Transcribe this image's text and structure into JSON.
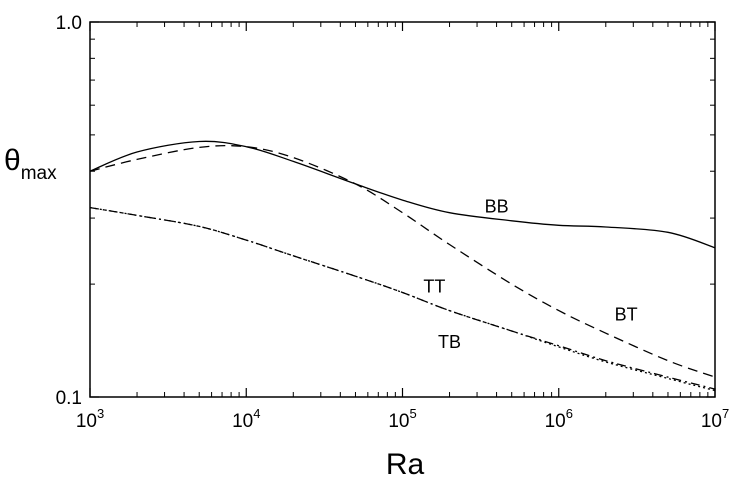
{
  "chart_data": {
    "type": "line",
    "xlabel": "Ra",
    "ylabel": "θ",
    "ylabel_subscript": "max",
    "xscale": "log",
    "yscale": "log",
    "xlim": [
      1000,
      10000000
    ],
    "ylim": [
      0.1,
      1.0
    ],
    "x_ticks": [
      {
        "value": 1000,
        "base": "10",
        "exp": "3"
      },
      {
        "value": 10000,
        "base": "10",
        "exp": "4"
      },
      {
        "value": 100000,
        "base": "10",
        "exp": "5"
      },
      {
        "value": 1000000,
        "base": "10",
        "exp": "6"
      },
      {
        "value": 10000000,
        "base": "10",
        "exp": "7"
      }
    ],
    "y_ticks": [
      {
        "value": 0.1,
        "label": "0.1"
      },
      {
        "value": 1.0,
        "label": "1.0"
      }
    ],
    "series": [
      {
        "name": "BB",
        "dash": "solid",
        "x": [
          1000,
          2000,
          5000,
          10000,
          20000,
          50000,
          100000,
          200000,
          500000,
          1000000,
          2000000,
          5000000,
          10000000
        ],
        "y": [
          0.4,
          0.45,
          0.48,
          0.465,
          0.425,
          0.37,
          0.335,
          0.31,
          0.295,
          0.287,
          0.284,
          0.275,
          0.25
        ]
      },
      {
        "name": "BT",
        "dash": "dashed",
        "x": [
          1000,
          2000,
          5000,
          10000,
          20000,
          50000,
          100000,
          200000,
          500000,
          1000000,
          2000000,
          5000000,
          10000000
        ],
        "y": [
          0.4,
          0.43,
          0.463,
          0.465,
          0.435,
          0.37,
          0.31,
          0.255,
          0.2,
          0.17,
          0.148,
          0.125,
          0.113
        ]
      },
      {
        "name": "TT",
        "dash": "dashdot",
        "x": [
          1000,
          2000,
          5000,
          10000,
          20000,
          50000,
          100000,
          200000,
          500000,
          1000000,
          2000000,
          5000000,
          10000000
        ],
        "y": [
          0.32,
          0.305,
          0.285,
          0.262,
          0.238,
          0.21,
          0.19,
          0.17,
          0.15,
          0.137,
          0.125,
          0.113,
          0.105
        ]
      },
      {
        "name": "TB",
        "dash": "dotted",
        "x": [
          1000,
          2000,
          5000,
          10000,
          20000,
          50000,
          100000,
          200000,
          500000,
          1000000,
          2000000,
          5000000,
          10000000
        ],
        "y": [
          0.32,
          0.305,
          0.285,
          0.262,
          0.238,
          0.21,
          0.19,
          0.17,
          0.15,
          0.136,
          0.124,
          0.112,
          0.104
        ]
      }
    ],
    "annotations": [
      {
        "text": "BB",
        "x": 400000,
        "y": 0.31
      },
      {
        "text": "TT",
        "x": 160000,
        "y": 0.19
      },
      {
        "text": "BT",
        "x": 2700000,
        "y": 0.16
      },
      {
        "text": "TB",
        "x": 200000,
        "y": 0.135
      }
    ],
    "grid": false,
    "legend": "none"
  }
}
